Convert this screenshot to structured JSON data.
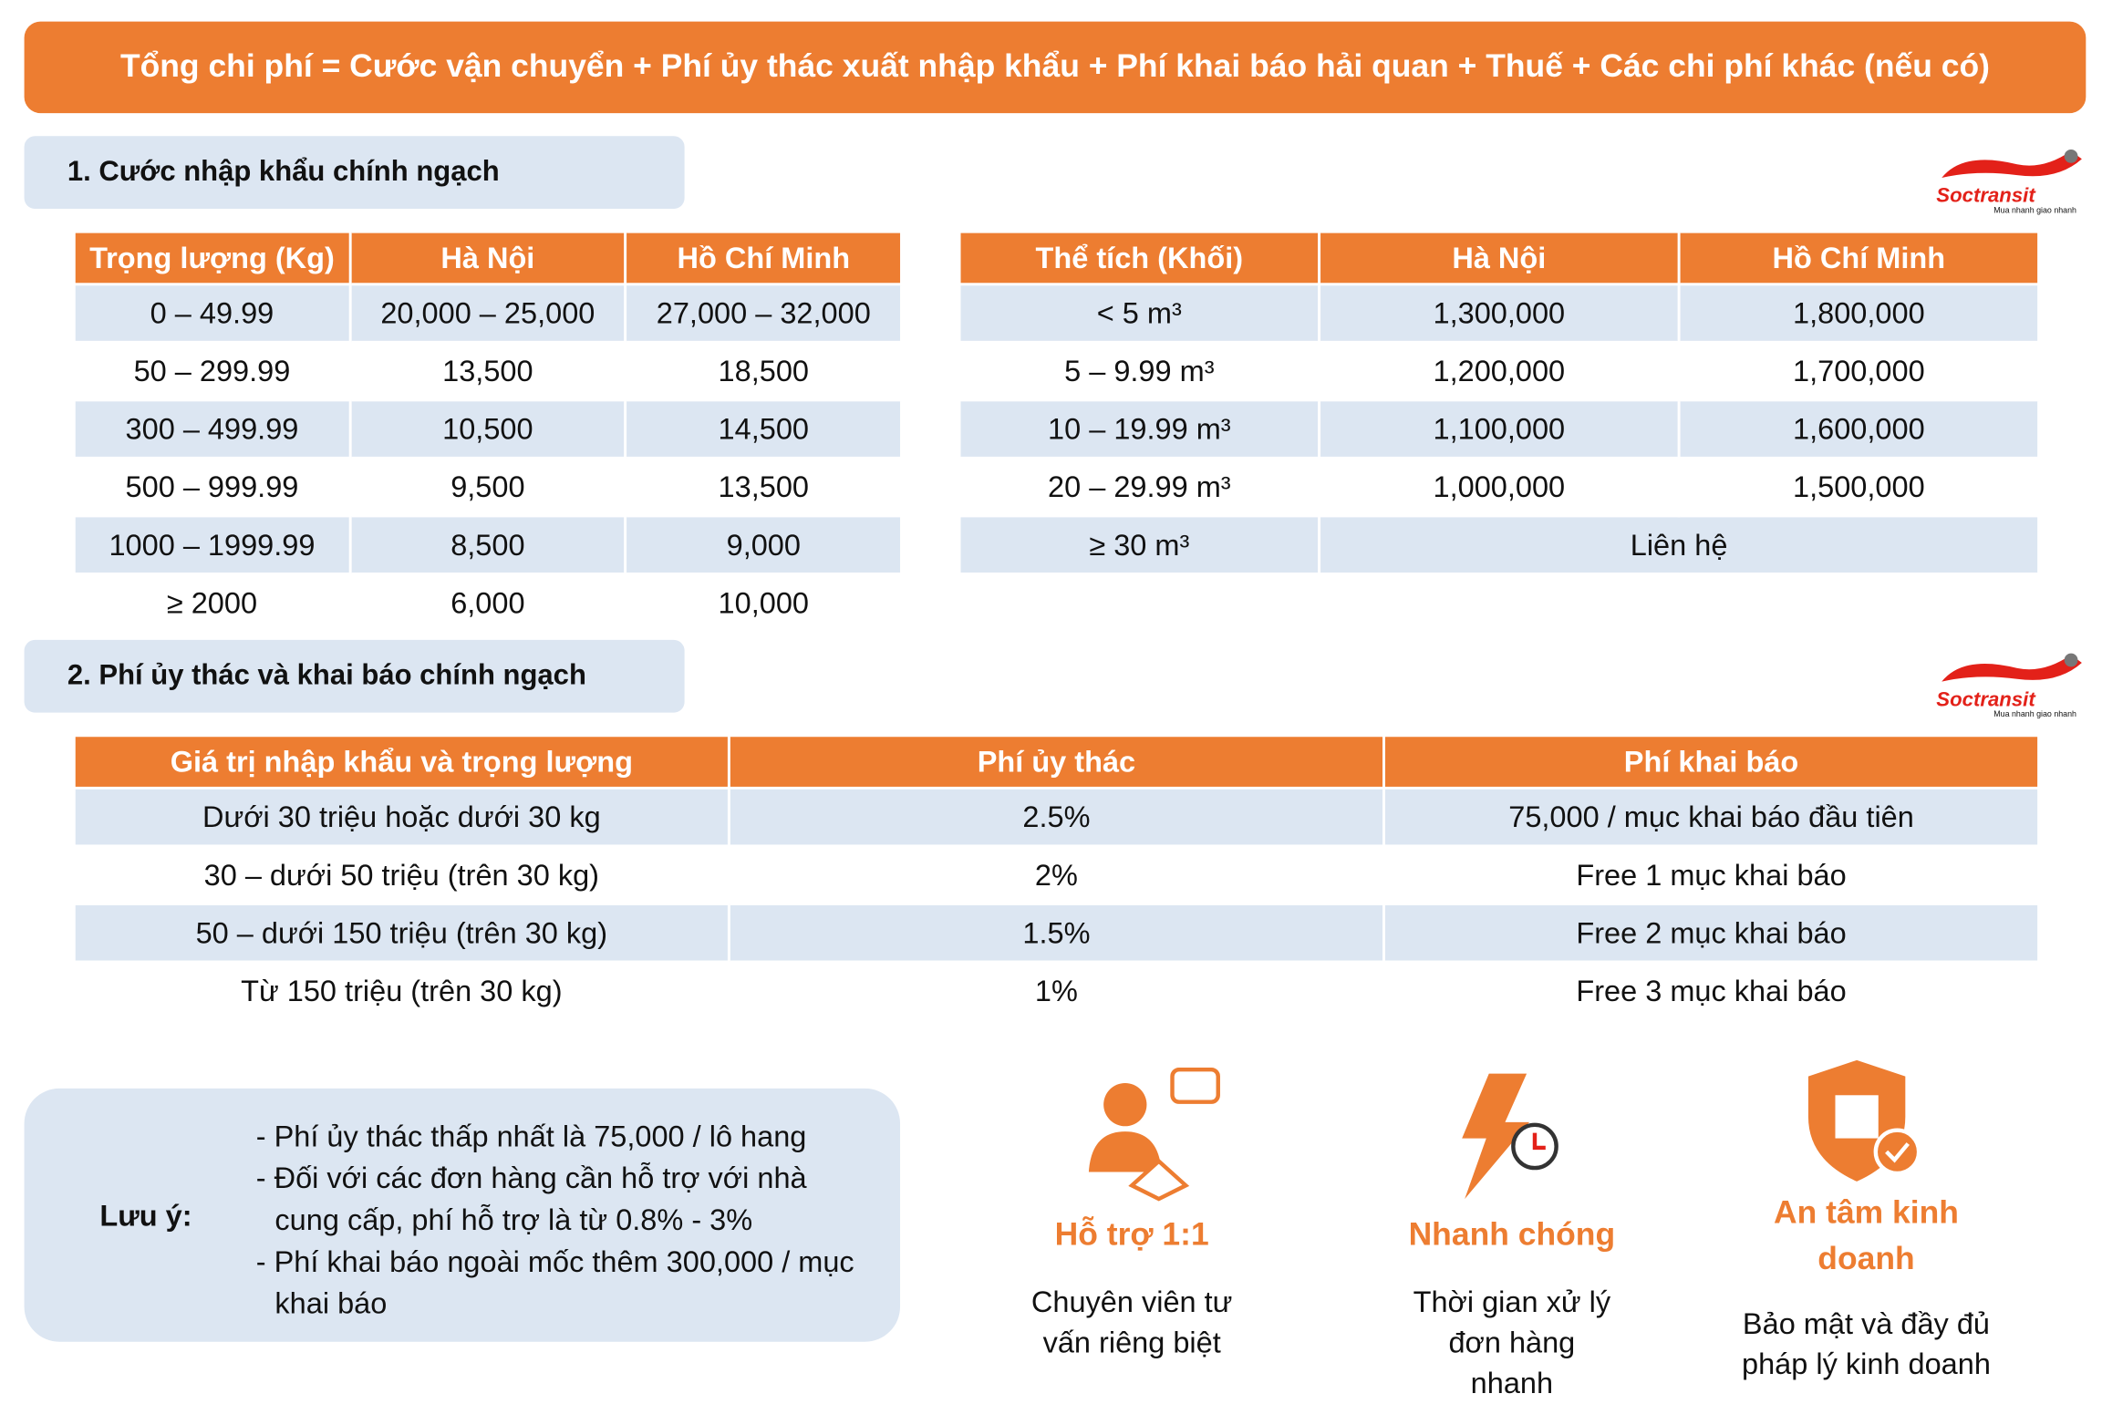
{
  "header": {
    "title": "Tổng chi phí = Cước vận chuyển + Phí ủy thác xuất nhập khẩu + Phí khai báo hải quan + Thuế + Các chi phí khác (nếu có)"
  },
  "logo": {
    "name": "Soctransit",
    "tagline": "Mua nhanh giao nhanh"
  },
  "section1": {
    "title": "1. Cước nhập khẩu chính ngạch",
    "weight_table": {
      "headers": [
        "Trọng lượng (Kg)",
        "Hà Nội",
        "Hồ Chí Minh"
      ],
      "rows": [
        [
          "0 – 49.99",
          "20,000 – 25,000",
          "27,000 – 32,000"
        ],
        [
          "50 – 299.99",
          "13,500",
          "18,500"
        ],
        [
          "300 – 499.99",
          "10,500",
          "14,500"
        ],
        [
          "500 – 999.99",
          "9,500",
          "13,500"
        ],
        [
          "1000 – 1999.99",
          "8,500",
          "9,000"
        ],
        [
          "≥ 2000",
          "6,000",
          "10,000"
        ]
      ]
    },
    "volume_table": {
      "headers": [
        "Thể tích (Khối)",
        "Hà Nội",
        "Hồ Chí Minh"
      ],
      "rows": [
        [
          "< 5 m³",
          "1,300,000",
          "1,800,000"
        ],
        [
          "5 – 9.99 m³",
          "1,200,000",
          "1,700,000"
        ],
        [
          "10 – 19.99 m³",
          "1,100,000",
          "1,600,000"
        ],
        [
          "20 – 29.99 m³",
          "1,000,000",
          "1,500,000"
        ],
        [
          "≥ 30 m³",
          "Liên hệ"
        ]
      ]
    }
  },
  "section2": {
    "title": "2. Phí ủy thác và khai báo chính ngạch",
    "fee_table": {
      "headers": [
        "Giá trị nhập khẩu và trọng lượng",
        "Phí ủy thác",
        "Phí khai báo"
      ],
      "rows": [
        [
          "Dưới 30 triệu hoặc dưới 30 kg",
          "2.5%",
          "75,000 / mục khai báo đầu tiên"
        ],
        [
          "30 – dưới 50 triệu (trên 30 kg)",
          "2%",
          "Free 1 mục khai báo"
        ],
        [
          "50 – dưới 150 triệu (trên 30 kg)",
          "1.5%",
          "Free 2 mục khai báo"
        ],
        [
          "Từ 150 triệu (trên 30 kg)",
          "1%",
          "Free 3 mục khai báo"
        ]
      ]
    }
  },
  "note": {
    "label": "Lưu ý:",
    "items": [
      "- Phí ủy thác thấp nhất là 75,000 / lô hang",
      "- Đối với các đơn hàng cần hỗ trợ với nhà cung cấp, phí hỗ trợ là từ 0.8% - 3%",
      "- Phí khai báo ngoài mốc thêm 300,000 / mục khai báo"
    ]
  },
  "features": [
    {
      "title": "Hỗ trợ 1:1",
      "desc": "Chuyên viên tư vấn riêng biệt"
    },
    {
      "title": "Nhanh chóng",
      "desc": "Thời gian xử lý đơn hàng nhanh"
    },
    {
      "title": "An tâm kinh doanh",
      "desc": "Bảo mật và đầy đủ pháp lý kinh doanh"
    }
  ]
}
